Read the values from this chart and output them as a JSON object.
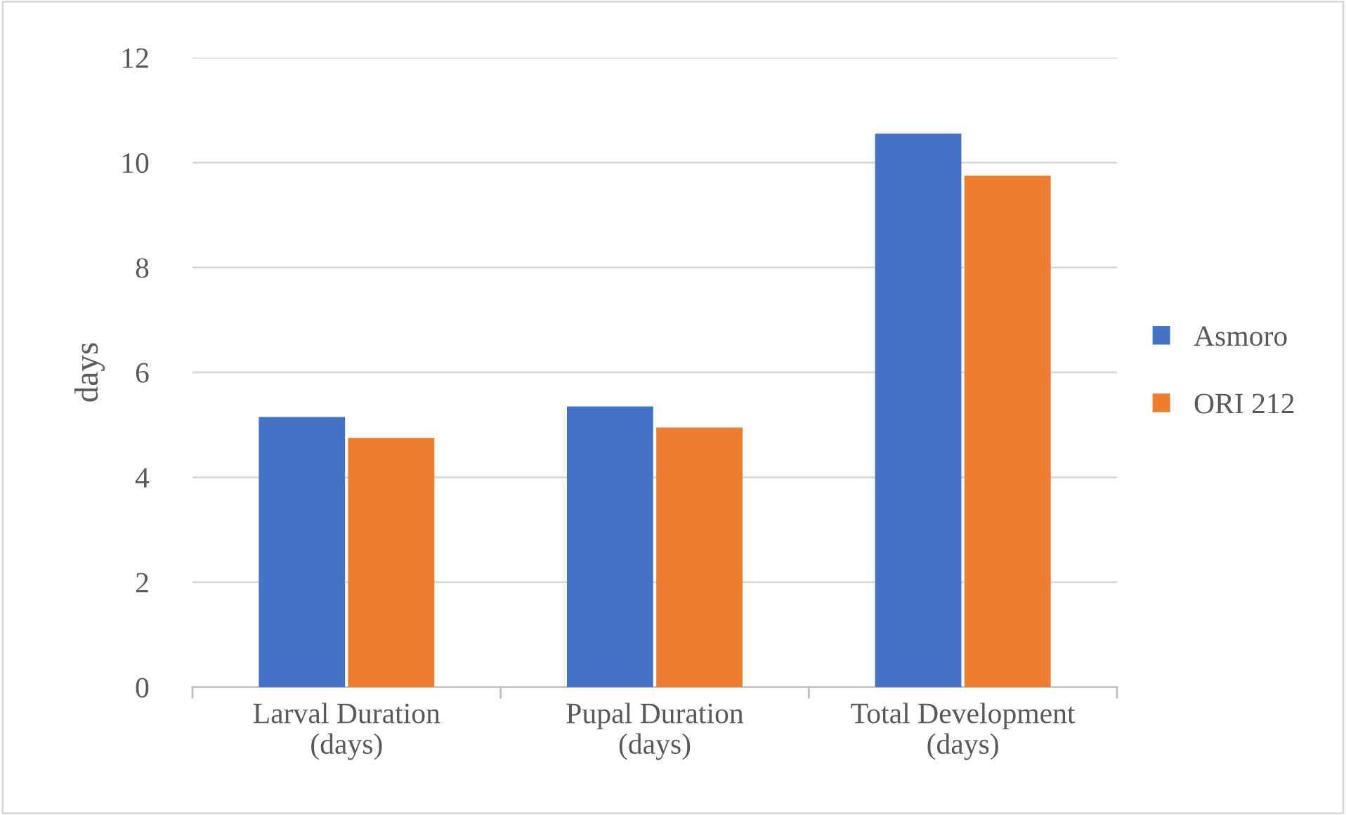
{
  "chart_data": {
    "type": "bar",
    "ylabel": "days",
    "categories": [
      "Larval Duration\n(days)",
      "Pupal Duration\n(days)",
      "Total Development\n(days)"
    ],
    "series": [
      {
        "name": "Asmoro",
        "color": "#4472c4",
        "values": [
          5.15,
          5.35,
          10.55
        ]
      },
      {
        "name": "ORI 212",
        "color": "#ed7d31",
        "values": [
          4.75,
          4.95,
          9.75
        ]
      }
    ],
    "ylim": [
      0,
      12
    ],
    "yticks": [
      0,
      2,
      4,
      6,
      8,
      10,
      12
    ],
    "grid": "y",
    "legend": "right"
  }
}
